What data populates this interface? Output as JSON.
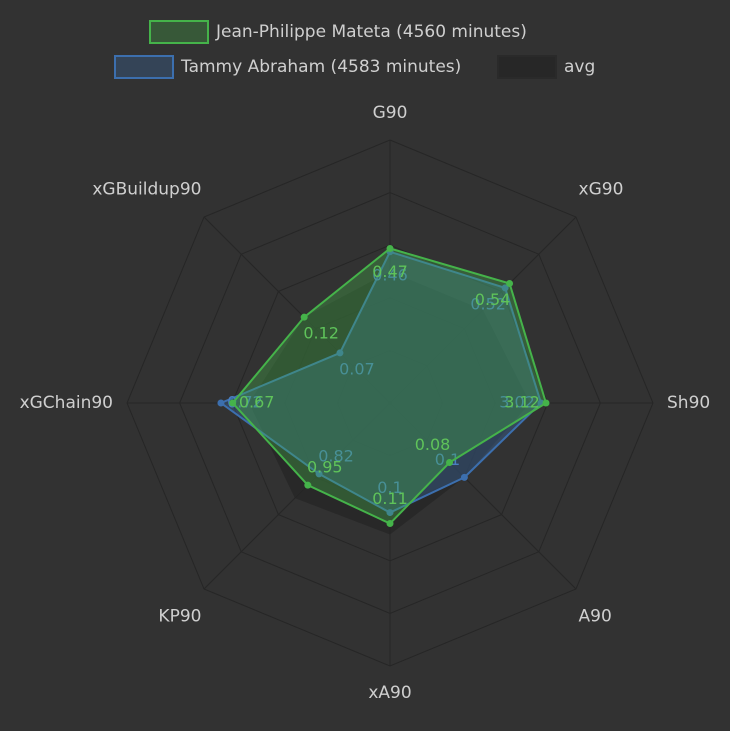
{
  "chart_data": {
    "type": "radar",
    "categories": [
      "G90",
      "xG90",
      "Sh90",
      "A90",
      "xA90",
      "KP90",
      "xGChain90",
      "xGBuildup90"
    ],
    "rlims": [
      [
        0,
        0.8
      ],
      [
        0,
        0.84
      ],
      [
        0,
        5.26
      ],
      [
        0,
        0.25
      ],
      [
        0,
        0.24
      ],
      [
        0,
        2.15
      ],
      [
        0,
        1.12
      ],
      [
        0,
        0.26
      ]
    ],
    "series": [
      {
        "name": "Jean-Philippe Mateta (4560 minutes)",
        "color": "#45b34a",
        "values": [
          0.47,
          0.54,
          3.12,
          0.08,
          0.11,
          0.95,
          0.67,
          0.12
        ]
      },
      {
        "name": "Tammy Abraham (4583 minutes)",
        "color": "#3c6fae",
        "values": [
          0.46,
          0.52,
          3.02,
          0.1,
          0.1,
          0.82,
          0.72,
          0.07
        ]
      },
      {
        "name": "avg",
        "color": "#262626",
        "values": [
          0.4,
          0.42,
          2.8,
          0.1,
          0.12,
          1.1,
          0.6,
          0.12
        ]
      }
    ]
  }
}
